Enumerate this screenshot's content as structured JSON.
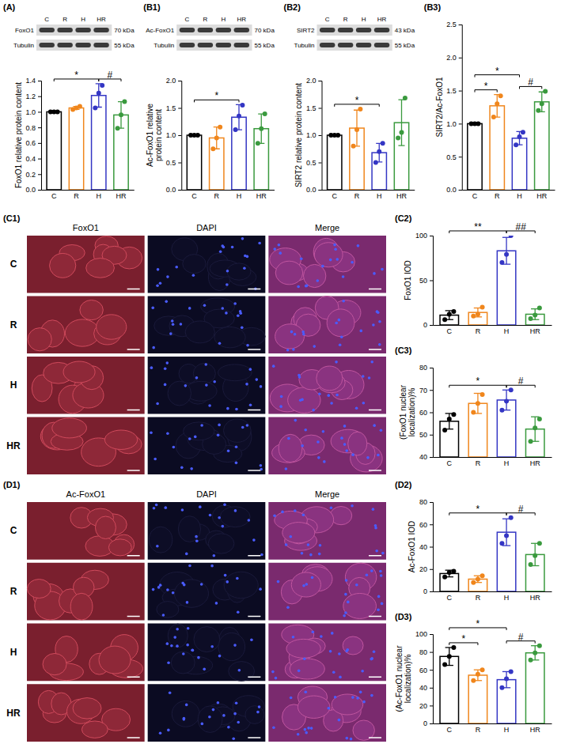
{
  "blots": [
    {
      "panel": "(A)",
      "lanes": [
        "C",
        "R",
        "H",
        "HR"
      ],
      "rows": [
        {
          "label": "FoxO1",
          "size": "70 kDa"
        },
        {
          "label": "Tubulin",
          "size": "55 kDa"
        }
      ]
    },
    {
      "panel": "(B1)",
      "lanes": [
        "C",
        "R",
        "H",
        "HR"
      ],
      "rows": [
        {
          "label": "Ac-FoxO1",
          "size": "70 kDa"
        },
        {
          "label": "Tubulin",
          "size": "55 kDa"
        }
      ]
    },
    {
      "panel": "(B2)",
      "lanes": [
        "C",
        "R",
        "H",
        "HR"
      ],
      "rows": [
        {
          "label": "SIRT2",
          "size": "43 kDa"
        },
        {
          "label": "Tubulin",
          "size": "55 kDa"
        }
      ]
    }
  ],
  "micrographs": [
    {
      "panel": "(C1)",
      "columns": [
        "FoxO1",
        "DAPI",
        "Merge"
      ],
      "rows": [
        "C",
        "R",
        "H",
        "HR"
      ]
    },
    {
      "panel": "(D1)",
      "columns": [
        "Ac-FoxO1",
        "DAPI",
        "Merge"
      ],
      "rows": [
        "C",
        "R",
        "H",
        "HR"
      ]
    }
  ],
  "chart_data": [
    {
      "type": "bar",
      "ylabel": "FoxO1 relative protein content",
      "categories": [
        "C",
        "R",
        "H",
        "HR"
      ],
      "values": [
        1.0,
        1.05,
        1.21,
        0.96
      ],
      "errors": [
        0,
        0.02,
        0.15,
        0.17
      ],
      "points": [
        [
          1.0,
          1.0,
          1.0
        ],
        [
          1.03,
          1.05,
          1.07
        ],
        [
          1.05,
          1.24,
          1.34
        ],
        [
          0.79,
          0.96,
          1.13
        ]
      ],
      "colors": [
        "#000000",
        "#f0861c",
        "#3436c4",
        "#3a9a3e"
      ],
      "ylim": [
        0,
        1.4
      ],
      "yticks": [
        {
          "value": 0,
          "label": "0.0"
        },
        {
          "value": 0.2,
          "label": "0.2"
        },
        {
          "value": 0.4,
          "label": "0.4"
        },
        {
          "value": 0.6,
          "label": "0.6"
        },
        {
          "value": 0.8,
          "label": "0.8"
        },
        {
          "value": 1.0,
          "label": "1.0"
        },
        {
          "value": 1.2,
          "label": "1.2"
        },
        {
          "value": 1.4,
          "label": "1.4"
        }
      ],
      "annotations": [
        {
          "text": "*",
          "between": [
            "C",
            "H"
          ]
        },
        {
          "text": "#",
          "between": [
            "H",
            "HR"
          ]
        }
      ]
    },
    {
      "type": "bar",
      "ylabel": "Ac-FoxO1 relative protein content",
      "categories": [
        "C",
        "R",
        "H",
        "HR"
      ],
      "values": [
        1.0,
        0.95,
        1.33,
        1.12
      ],
      "errors": [
        0,
        0.2,
        0.23,
        0.27
      ],
      "points": [
        [
          1.0,
          1.0,
          1.0
        ],
        [
          0.75,
          0.95,
          1.15
        ],
        [
          1.1,
          1.35,
          1.55
        ],
        [
          0.85,
          1.12,
          1.39
        ]
      ],
      "colors": [
        "#000000",
        "#f0861c",
        "#3436c4",
        "#3a9a3e"
      ],
      "ylim": [
        0,
        2.0
      ],
      "yticks": [
        {
          "value": 0,
          "label": "0.0"
        },
        {
          "value": 0.5,
          "label": "0.5"
        },
        {
          "value": 1.0,
          "label": "1.0"
        },
        {
          "value": 1.5,
          "label": "1.5"
        },
        {
          "value": 2.0,
          "label": "2.0"
        }
      ],
      "annotations": [
        {
          "text": "*",
          "between": [
            "C",
            "H"
          ]
        }
      ]
    },
    {
      "type": "bar",
      "ylabel": "SIRT2 relative protein content",
      "categories": [
        "C",
        "R",
        "H",
        "HR"
      ],
      "values": [
        1.0,
        1.13,
        0.68,
        1.23
      ],
      "errors": [
        0,
        0.33,
        0.17,
        0.42
      ],
      "points": [
        [
          1.0,
          1.0,
          1.0
        ],
        [
          0.8,
          1.1,
          1.48
        ],
        [
          0.5,
          0.7,
          0.85
        ],
        [
          0.95,
          1.05,
          1.68
        ]
      ],
      "colors": [
        "#000000",
        "#f0861c",
        "#3436c4",
        "#3a9a3e"
      ],
      "ylim": [
        0,
        2.0
      ],
      "yticks": [
        {
          "value": 0,
          "label": "0.0"
        },
        {
          "value": 0.5,
          "label": "0.5"
        },
        {
          "value": 1.0,
          "label": "1.0"
        },
        {
          "value": 1.5,
          "label": "1.5"
        },
        {
          "value": 2.0,
          "label": "2.0"
        }
      ],
      "annotations": [
        {
          "text": "*",
          "between": [
            "C",
            "H"
          ]
        }
      ]
    },
    {
      "type": "bar",
      "panel": "(B3)",
      "ylabel": "SIRT2/Ac-FoxO1",
      "categories": [
        "C",
        "R",
        "H",
        "HR"
      ],
      "values": [
        1.0,
        1.27,
        0.78,
        1.33
      ],
      "errors": [
        0,
        0.17,
        0.1,
        0.15
      ],
      "points": [
        [
          1.0,
          1.0,
          1.0
        ],
        [
          1.1,
          1.3,
          1.42
        ],
        [
          0.68,
          0.8,
          0.87
        ],
        [
          1.2,
          1.3,
          1.49
        ]
      ],
      "colors": [
        "#000000",
        "#f0861c",
        "#3436c4",
        "#3a9a3e"
      ],
      "ylim": [
        0,
        2.5
      ],
      "yticks": [
        {
          "value": 0,
          "label": "0.0"
        },
        {
          "value": 0.5,
          "label": "0.5"
        },
        {
          "value": 1.0,
          "label": "1.0"
        },
        {
          "value": 1.5,
          "label": "1.5"
        },
        {
          "value": 2.0,
          "label": "2.0"
        },
        {
          "value": 2.5,
          "label": "2.5"
        }
      ],
      "annotations": [
        {
          "text": "*",
          "between": [
            "C",
            "R"
          ]
        },
        {
          "text": "*",
          "between": [
            "C",
            "H"
          ]
        },
        {
          "text": "#",
          "between": [
            "H",
            "HR"
          ]
        }
      ]
    },
    {
      "type": "bar",
      "panel": "(C2)",
      "ylabel": "FoxO1 IOD",
      "categories": [
        "C",
        "R",
        "H",
        "HR"
      ],
      "values": [
        11,
        14,
        83,
        12
      ],
      "errors": [
        5,
        5,
        15,
        6
      ],
      "points": [
        [
          6,
          12,
          15
        ],
        [
          10,
          12,
          20
        ],
        [
          70,
          79,
          100
        ],
        [
          7,
          11,
          19
        ]
      ],
      "colors": [
        "#000000",
        "#f0861c",
        "#3436c4",
        "#3a9a3e"
      ],
      "ylim": [
        0,
        100
      ],
      "yticks": [
        0,
        50,
        100
      ],
      "annotations": [
        {
          "text": "**",
          "between": [
            "C",
            "H"
          ]
        },
        {
          "text": "##",
          "between": [
            "H",
            "HR"
          ]
        }
      ]
    },
    {
      "type": "bar",
      "panel": "(C3)",
      "ylabel": "(FoxO1 nuclear localization)%",
      "categories": [
        "C",
        "R",
        "H",
        "HR"
      ],
      "values": [
        56,
        64,
        65.5,
        52.5
      ],
      "errors": [
        3.5,
        4.5,
        4.5,
        5.5
      ],
      "points": [
        [
          52,
          57,
          59
        ],
        [
          60,
          64,
          68
        ],
        [
          61,
          65,
          70
        ],
        [
          47,
          53,
          57
        ]
      ],
      "colors": [
        "#000000",
        "#f0861c",
        "#3436c4",
        "#3a9a3e"
      ],
      "ylim": [
        40,
        80
      ],
      "yticks": [
        40,
        50,
        60,
        70,
        80
      ],
      "annotations": [
        {
          "text": "*",
          "between": [
            "C",
            "H"
          ]
        },
        {
          "text": "#",
          "between": [
            "H",
            "HR"
          ]
        }
      ]
    },
    {
      "type": "bar",
      "panel": "(D2)",
      "ylabel": "Ac-FoxO1 IOD",
      "categories": [
        "C",
        "R",
        "H",
        "HR"
      ],
      "values": [
        16,
        11,
        53,
        33
      ],
      "errors": [
        3,
        3,
        12,
        10
      ],
      "points": [
        [
          13,
          17,
          18
        ],
        [
          8,
          11,
          14
        ],
        [
          43,
          50,
          66
        ],
        [
          24,
          32,
          43
        ]
      ],
      "colors": [
        "#000000",
        "#f0861c",
        "#3436c4",
        "#3a9a3e"
      ],
      "ylim": [
        0,
        80
      ],
      "yticks": [
        0,
        20,
        40,
        60,
        80
      ],
      "annotations": [
        {
          "text": "*",
          "between": [
            "C",
            "H"
          ]
        },
        {
          "text": "#",
          "between": [
            "H",
            "HR"
          ]
        }
      ]
    },
    {
      "type": "bar",
      "panel": "(D3)",
      "ylabel": "(Ac-FoxO1 nuclear localization)%",
      "categories": [
        "C",
        "R",
        "H",
        "HR"
      ],
      "values": [
        75,
        54,
        49,
        79
      ],
      "errors": [
        10,
        6,
        9,
        8
      ],
      "points": [
        [
          66,
          75,
          85
        ],
        [
          48,
          55,
          60
        ],
        [
          40,
          50,
          58
        ],
        [
          71,
          79,
          87
        ]
      ],
      "colors": [
        "#000000",
        "#f0861c",
        "#3436c4",
        "#3a9a3e"
      ],
      "ylim": [
        0,
        100
      ],
      "yticks": [
        0,
        20,
        40,
        60,
        80,
        100
      ],
      "annotations": [
        {
          "text": "*",
          "between": [
            "C",
            "R"
          ]
        },
        {
          "text": "*",
          "between": [
            "C",
            "H"
          ]
        },
        {
          "text": "#",
          "between": [
            "H",
            "HR"
          ]
        }
      ]
    }
  ]
}
